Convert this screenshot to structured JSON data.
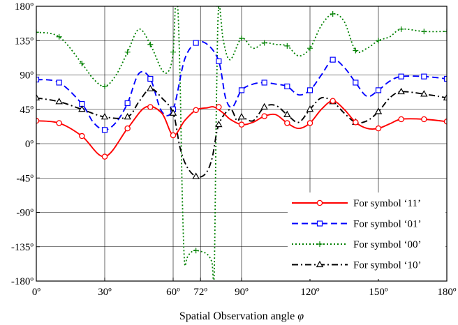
{
  "chart_data": {
    "type": "line",
    "title": "",
    "xlabel": "Spatial Observation angle",
    "xlabel_symbol": "φ",
    "ylabel": "",
    "xlim": [
      0,
      180
    ],
    "ylim": [
      -180,
      180
    ],
    "grid": true,
    "legend_position": "bottom-right",
    "x_ticks": [
      0,
      30,
      60,
      72,
      90,
      120,
      150,
      180
    ],
    "x_tick_labels": [
      "0º",
      "30º",
      "60º",
      "72º",
      "90º",
      "120º",
      "150º",
      "180º"
    ],
    "y_ticks": [
      180,
      135,
      90,
      45,
      0,
      -45,
      -90,
      -135,
      -180
    ],
    "y_tick_labels": [
      "180º",
      "135º",
      "90º",
      "45º",
      "0º",
      "-45º",
      "-90º",
      "-135º",
      "-180º"
    ],
    "series": [
      {
        "name": "For symbol ‘11’",
        "color": "#ff0000",
        "dash": "solid",
        "marker": "circle",
        "x": [
          0,
          10,
          20,
          30,
          40,
          48,
          55,
          60,
          65,
          70,
          75,
          78,
          82,
          85,
          90,
          95,
          100,
          105,
          110,
          115,
          120,
          125,
          130,
          135,
          140,
          145,
          150,
          155,
          160,
          170,
          180
        ],
        "y": [
          30,
          27,
          10,
          -17,
          20,
          48,
          40,
          11,
          30,
          44,
          47,
          48,
          40,
          32,
          25,
          28,
          36,
          38,
          27,
          20,
          27,
          45,
          56,
          45,
          28,
          20,
          20,
          26,
          32,
          32,
          29
        ],
        "marker_x": [
          0,
          10,
          20,
          30,
          40,
          50,
          60,
          70,
          80,
          90,
          100,
          110,
          120,
          130,
          140,
          150,
          160,
          170,
          180
        ],
        "marker_y": [
          30,
          27,
          10,
          -17,
          20,
          48,
          11,
          44,
          48,
          25,
          36,
          27,
          27,
          56,
          28,
          20,
          32,
          32,
          29
        ]
      },
      {
        "name": "For symbol ‘01’",
        "color": "#0000ff",
        "dash": "dashed",
        "marker": "square",
        "x": [
          0,
          10,
          20,
          25,
          30,
          35,
          40,
          45,
          50,
          55,
          60,
          65,
          70,
          75,
          80,
          83,
          86,
          90,
          95,
          100,
          105,
          110,
          115,
          120,
          125,
          130,
          135,
          140,
          145,
          150,
          155,
          160,
          170,
          180
        ],
        "y": [
          84,
          80,
          52,
          28,
          18,
          28,
          53,
          92,
          85,
          42,
          45,
          110,
          132,
          130,
          108,
          60,
          48,
          70,
          78,
          80,
          78,
          75,
          64,
          70,
          90,
          110,
          100,
          80,
          62,
          70,
          82,
          88,
          88,
          85
        ],
        "marker_x": [
          0,
          10,
          20,
          30,
          40,
          50,
          60,
          70,
          80,
          90,
          100,
          110,
          120,
          130,
          140,
          150,
          160,
          170,
          180
        ],
        "marker_y": [
          84,
          80,
          52,
          18,
          53,
          85,
          45,
          132,
          108,
          70,
          80,
          75,
          70,
          110,
          80,
          70,
          88,
          88,
          85
        ]
      },
      {
        "name": "For symbol ‘00’",
        "color": "#008000",
        "dash": "dotted",
        "marker": "plus",
        "x": [
          0,
          10,
          20,
          25,
          30,
          35,
          40,
          45,
          50,
          55,
          58,
          60,
          61,
          62,
          63,
          64,
          65,
          66,
          67,
          68,
          69,
          70,
          72,
          75,
          77,
          78,
          79,
          80,
          82,
          85,
          90,
          95,
          100,
          105,
          110,
          115,
          120,
          125,
          130,
          135,
          140,
          145,
          150,
          155,
          160,
          170,
          180
        ],
        "y": [
          146,
          140,
          105,
          85,
          75,
          90,
          120,
          150,
          130,
          97,
          95,
          120,
          180,
          180,
          90,
          -70,
          -155,
          -150,
          -145,
          -142,
          -140,
          -140,
          -141,
          -145,
          -155,
          -170,
          60,
          180,
          135,
          110,
          138,
          125,
          132,
          130,
          128,
          115,
          125,
          155,
          170,
          160,
          122,
          125,
          135,
          140,
          150,
          147,
          147
        ],
        "marker_x": [
          0,
          10,
          20,
          30,
          40,
          50,
          60,
          70,
          80,
          90,
          100,
          110,
          120,
          130,
          140,
          150,
          160,
          170,
          180
        ],
        "marker_y": [
          146,
          140,
          105,
          75,
          120,
          130,
          120,
          -140,
          180,
          138,
          132,
          128,
          125,
          170,
          122,
          135,
          150,
          147,
          147
        ]
      },
      {
        "name": "For symbol ‘10’",
        "color": "#000000",
        "dash": "dashdot",
        "marker": "triangle",
        "x": [
          0,
          10,
          20,
          30,
          40,
          45,
          50,
          55,
          60,
          63,
          66,
          70,
          74,
          77,
          80,
          85,
          88,
          90,
          95,
          100,
          105,
          110,
          115,
          120,
          125,
          130,
          135,
          140,
          145,
          150,
          155,
          160,
          170,
          180
        ],
        "y": [
          60,
          55,
          45,
          35,
          35,
          55,
          72,
          60,
          40,
          -5,
          -30,
          -43,
          -40,
          -20,
          25,
          45,
          30,
          35,
          30,
          48,
          50,
          38,
          28,
          45,
          60,
          55,
          40,
          28,
          30,
          42,
          60,
          68,
          65,
          60
        ],
        "marker_x": [
          0,
          10,
          20,
          30,
          40,
          50,
          60,
          70,
          80,
          90,
          100,
          110,
          120,
          130,
          140,
          150,
          160,
          170,
          180
        ],
        "marker_y": [
          60,
          55,
          45,
          35,
          35,
          72,
          40,
          -43,
          25,
          35,
          48,
          38,
          45,
          55,
          28,
          42,
          68,
          65,
          60
        ]
      }
    ]
  }
}
